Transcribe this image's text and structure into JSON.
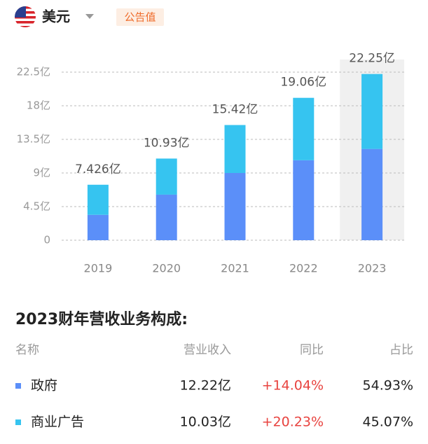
{
  "header": {
    "currency": "美元",
    "tag": "公告值"
  },
  "chart_data": {
    "type": "stacked-bar",
    "categories": [
      "2019",
      "2020",
      "2021",
      "2022",
      "2023"
    ],
    "series": [
      {
        "name": "政府",
        "color": "#5b8ff9",
        "values": [
          3.4,
          6.1,
          9.0,
          10.7,
          12.22
        ]
      },
      {
        "name": "商业广告",
        "color": "#36c4f0",
        "values": [
          4.026,
          4.83,
          6.42,
          8.36,
          10.03
        ]
      }
    ],
    "totals": {
      "values": [
        7.426,
        10.93,
        15.42,
        19.06,
        22.25
      ],
      "value_labels": [
        "7.426亿",
        "10.93亿",
        "15.42亿",
        "19.06亿",
        "22.25亿"
      ]
    },
    "ylim": [
      0,
      22.5
    ],
    "yticks": [
      0,
      {
        "value": 4.5,
        "label": "4.5亿"
      },
      {
        "value": 9,
        "label": "9亿"
      },
      {
        "value": 13.5,
        "label": "13.5亿"
      },
      {
        "value": 18,
        "label": "18亿"
      },
      {
        "value": 22.5,
        "label": "22.5亿"
      }
    ],
    "grid": true,
    "highlight": "2023"
  },
  "table": {
    "title": "2023财年营收业务构成:",
    "columns": [
      "名称",
      "营业收入",
      "同比",
      "占比"
    ],
    "rows": [
      [
        "政府",
        "12.22亿",
        "+14.04%",
        "54.93%"
      ],
      [
        "商业广告",
        "10.03亿",
        "+20.23%",
        "45.07%"
      ]
    ]
  }
}
